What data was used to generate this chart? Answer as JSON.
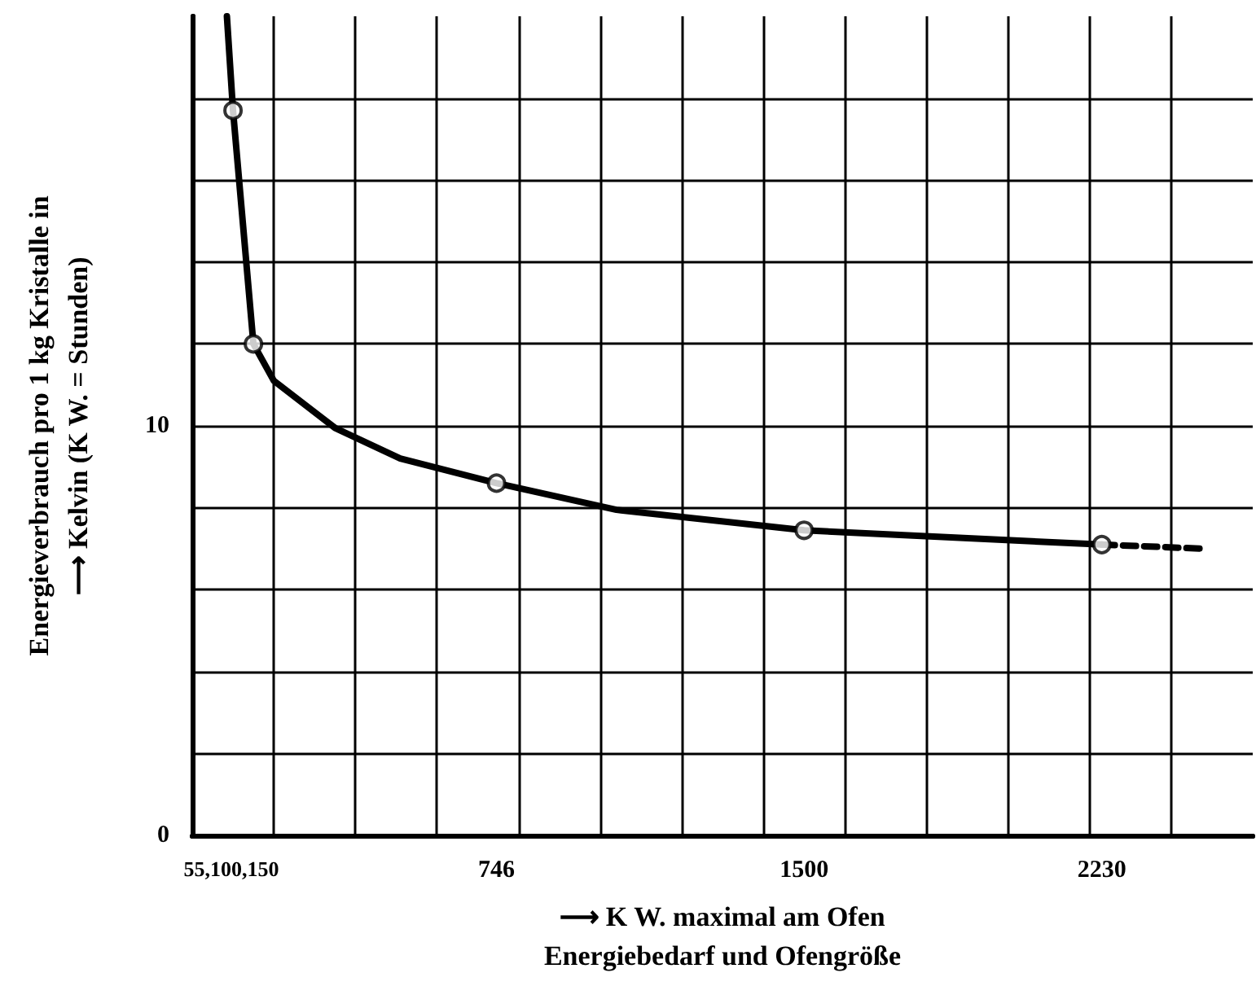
{
  "chart_data": {
    "type": "line",
    "xlabel": "⟶ K W. maximal am Ofen\nEnergiebedarf und Ofengröße",
    "ylabel": "Energieverbrauch pro 1 kg Kristalle in\n⟶ Kelvin (K W. = Stunden)",
    "xlim": [
      0,
      2600
    ],
    "annotations": [
      "55,100,150"
    ],
    "xticks": [
      746,
      1500,
      2230,
      {
        "value": 200,
        "label": null
      },
      {
        "value": 400,
        "label": null
      },
      {
        "value": 600,
        "label": null
      },
      {
        "value": 800,
        "label": null
      },
      {
        "value": 1000,
        "label": null
      },
      {
        "value": 1200,
        "label": null
      },
      {
        "value": 1400,
        "label": null
      },
      {
        "value": 1600,
        "label": null
      },
      {
        "value": 1800,
        "label": null
      },
      {
        "value": 2000,
        "label": null
      },
      {
        "value": 2200,
        "label": null
      },
      {
        "value": 2400,
        "label": null
      }
    ],
    "ylim": [
      0,
      20
    ],
    "yticks": [
      0,
      {
        "value": 2,
        "label": null
      },
      {
        "value": 4,
        "label": null
      },
      {
        "value": 6,
        "label": null
      },
      {
        "value": 8,
        "label": null
      },
      10,
      {
        "value": 12,
        "label": null
      },
      {
        "value": 14,
        "label": null
      },
      {
        "value": 16,
        "label": null
      },
      {
        "value": 18,
        "label": null
      }
    ],
    "grid": true,
    "series": [
      {
        "color": "#000000",
        "marker": "none",
        "line_style": "solid",
        "x": [
          85,
          100,
          150,
          200,
          350,
          510,
          746,
          1040,
          1500,
          2230
        ],
        "values": [
          20,
          17.7,
          12.0,
          11.1,
          9.95,
          9.2,
          8.6,
          7.95,
          7.45,
          7.1
        ]
      },
      {
        "color": "#000000",
        "marker": "none",
        "line_style": "dashed",
        "x": [
          2230,
          2480
        ],
        "values": [
          7.1,
          7.0
        ]
      },
      {
        "type": "scatter",
        "color": "#000000",
        "marker": "circle",
        "x": [
          100,
          150,
          746,
          1500,
          2230
        ],
        "values": [
          17.7,
          12.0,
          8.6,
          7.45,
          7.1
        ]
      }
    ]
  }
}
